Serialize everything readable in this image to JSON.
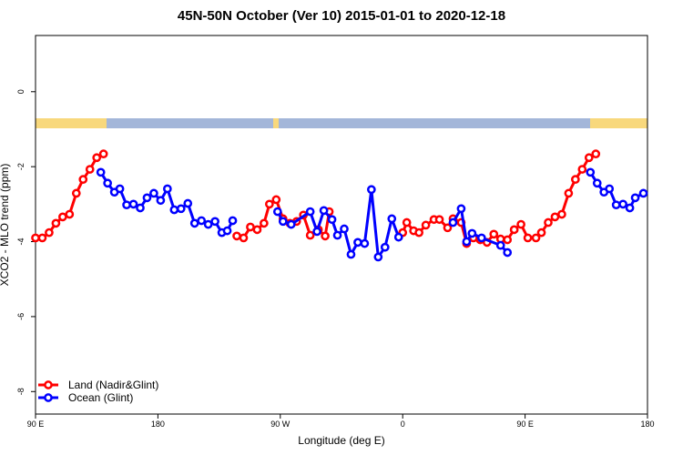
{
  "chart_data": {
    "type": "line",
    "title": "45N-50N October (Ver 10)   2015-01-01 to 2020-12-18",
    "x_label": "Longitude (deg E)",
    "y_label": "XCO2 - MLO trend (ppm)",
    "xlim": [
      90,
      540
    ],
    "xticks": [
      {
        "value": 90,
        "label": "90 E"
      },
      {
        "value": 180,
        "label": "180"
      },
      {
        "value": 270,
        "label": "90 W"
      },
      {
        "value": 360,
        "label": "0"
      },
      {
        "value": 450,
        "label": "90 E"
      },
      {
        "value": 540,
        "label": "180"
      }
    ],
    "ylim": [
      -8.6,
      1.5
    ],
    "yticks": [
      -8,
      -6,
      -4,
      -2,
      0
    ],
    "legend": "bottom-left",
    "series": [
      {
        "name": "Land (Nadir&Glint)",
        "color": "#ff0000",
        "x": [
          90,
          95,
          100,
          105,
          110,
          115,
          120,
          125,
          130,
          135,
          140,
          null,
          238,
          243,
          248,
          253,
          258,
          262,
          267,
          272,
          277,
          282,
          287,
          292,
          298,
          303,
          306,
          null,
          360,
          363,
          368,
          372,
          377,
          383,
          387,
          393,
          397,
          403,
          407,
          412,
          417,
          422,
          427,
          432,
          437,
          442,
          447,
          452,
          458,
          462,
          467,
          472,
          477,
          482,
          487,
          492,
          497,
          502
        ],
        "values": [
          -3.9,
          -3.9,
          -3.76,
          -3.51,
          -3.34,
          -3.27,
          -2.71,
          -2.34,
          -2.07,
          -1.76,
          -1.66,
          null,
          -3.85,
          -3.9,
          -3.61,
          -3.68,
          -3.51,
          -3.0,
          -2.88,
          -3.39,
          -3.51,
          -3.46,
          -3.29,
          -3.83,
          -3.68,
          -3.85,
          -3.2,
          null,
          -3.76,
          -3.49,
          -3.71,
          -3.76,
          -3.56,
          -3.41,
          -3.41,
          -3.63,
          -3.39,
          -3.49,
          -4.05,
          -3.9,
          -3.95,
          -4.02,
          -3.8,
          -3.93,
          -3.95,
          -3.68,
          -3.54,
          -3.9,
          -3.9,
          -3.76,
          -3.49,
          -3.34,
          -3.27,
          -2.71,
          -2.34,
          -2.07,
          -1.76,
          -1.66
        ]
      },
      {
        "name": "Ocean (Glint)",
        "color": "#0000ff",
        "x": [
          138,
          143,
          148,
          152,
          157,
          162,
          167,
          172,
          177,
          182,
          187,
          192,
          197,
          202,
          207,
          212,
          217,
          222,
          227,
          231,
          235,
          null,
          268,
          272,
          278,
          292,
          297,
          302,
          308,
          312,
          317,
          322,
          327,
          332,
          337,
          342,
          347,
          352,
          357,
          null,
          397,
          403,
          407,
          411,
          418,
          432,
          437,
          null,
          498,
          503,
          508,
          512,
          517,
          522,
          527,
          531,
          537
        ],
        "values": [
          -2.15,
          -2.44,
          -2.68,
          -2.59,
          -3.02,
          -3.0,
          -3.1,
          -2.83,
          -2.71,
          -2.9,
          -2.59,
          -3.15,
          -3.12,
          -2.98,
          -3.51,
          -3.44,
          -3.54,
          -3.46,
          -3.76,
          -3.71,
          -3.44,
          null,
          -3.2,
          -3.46,
          -3.54,
          -3.2,
          -3.73,
          -3.17,
          -3.41,
          -3.83,
          -3.66,
          -4.34,
          -4.02,
          -4.05,
          -2.61,
          -4.41,
          -4.15,
          -3.39,
          -3.88,
          null,
          -3.49,
          -3.12,
          -4.0,
          -3.78,
          -3.9,
          -4.1,
          -4.29,
          null,
          -2.15,
          -2.44,
          -2.68,
          -2.59,
          -3.02,
          -3.0,
          -3.1,
          -2.83,
          -2.71
        ]
      }
    ]
  }
}
